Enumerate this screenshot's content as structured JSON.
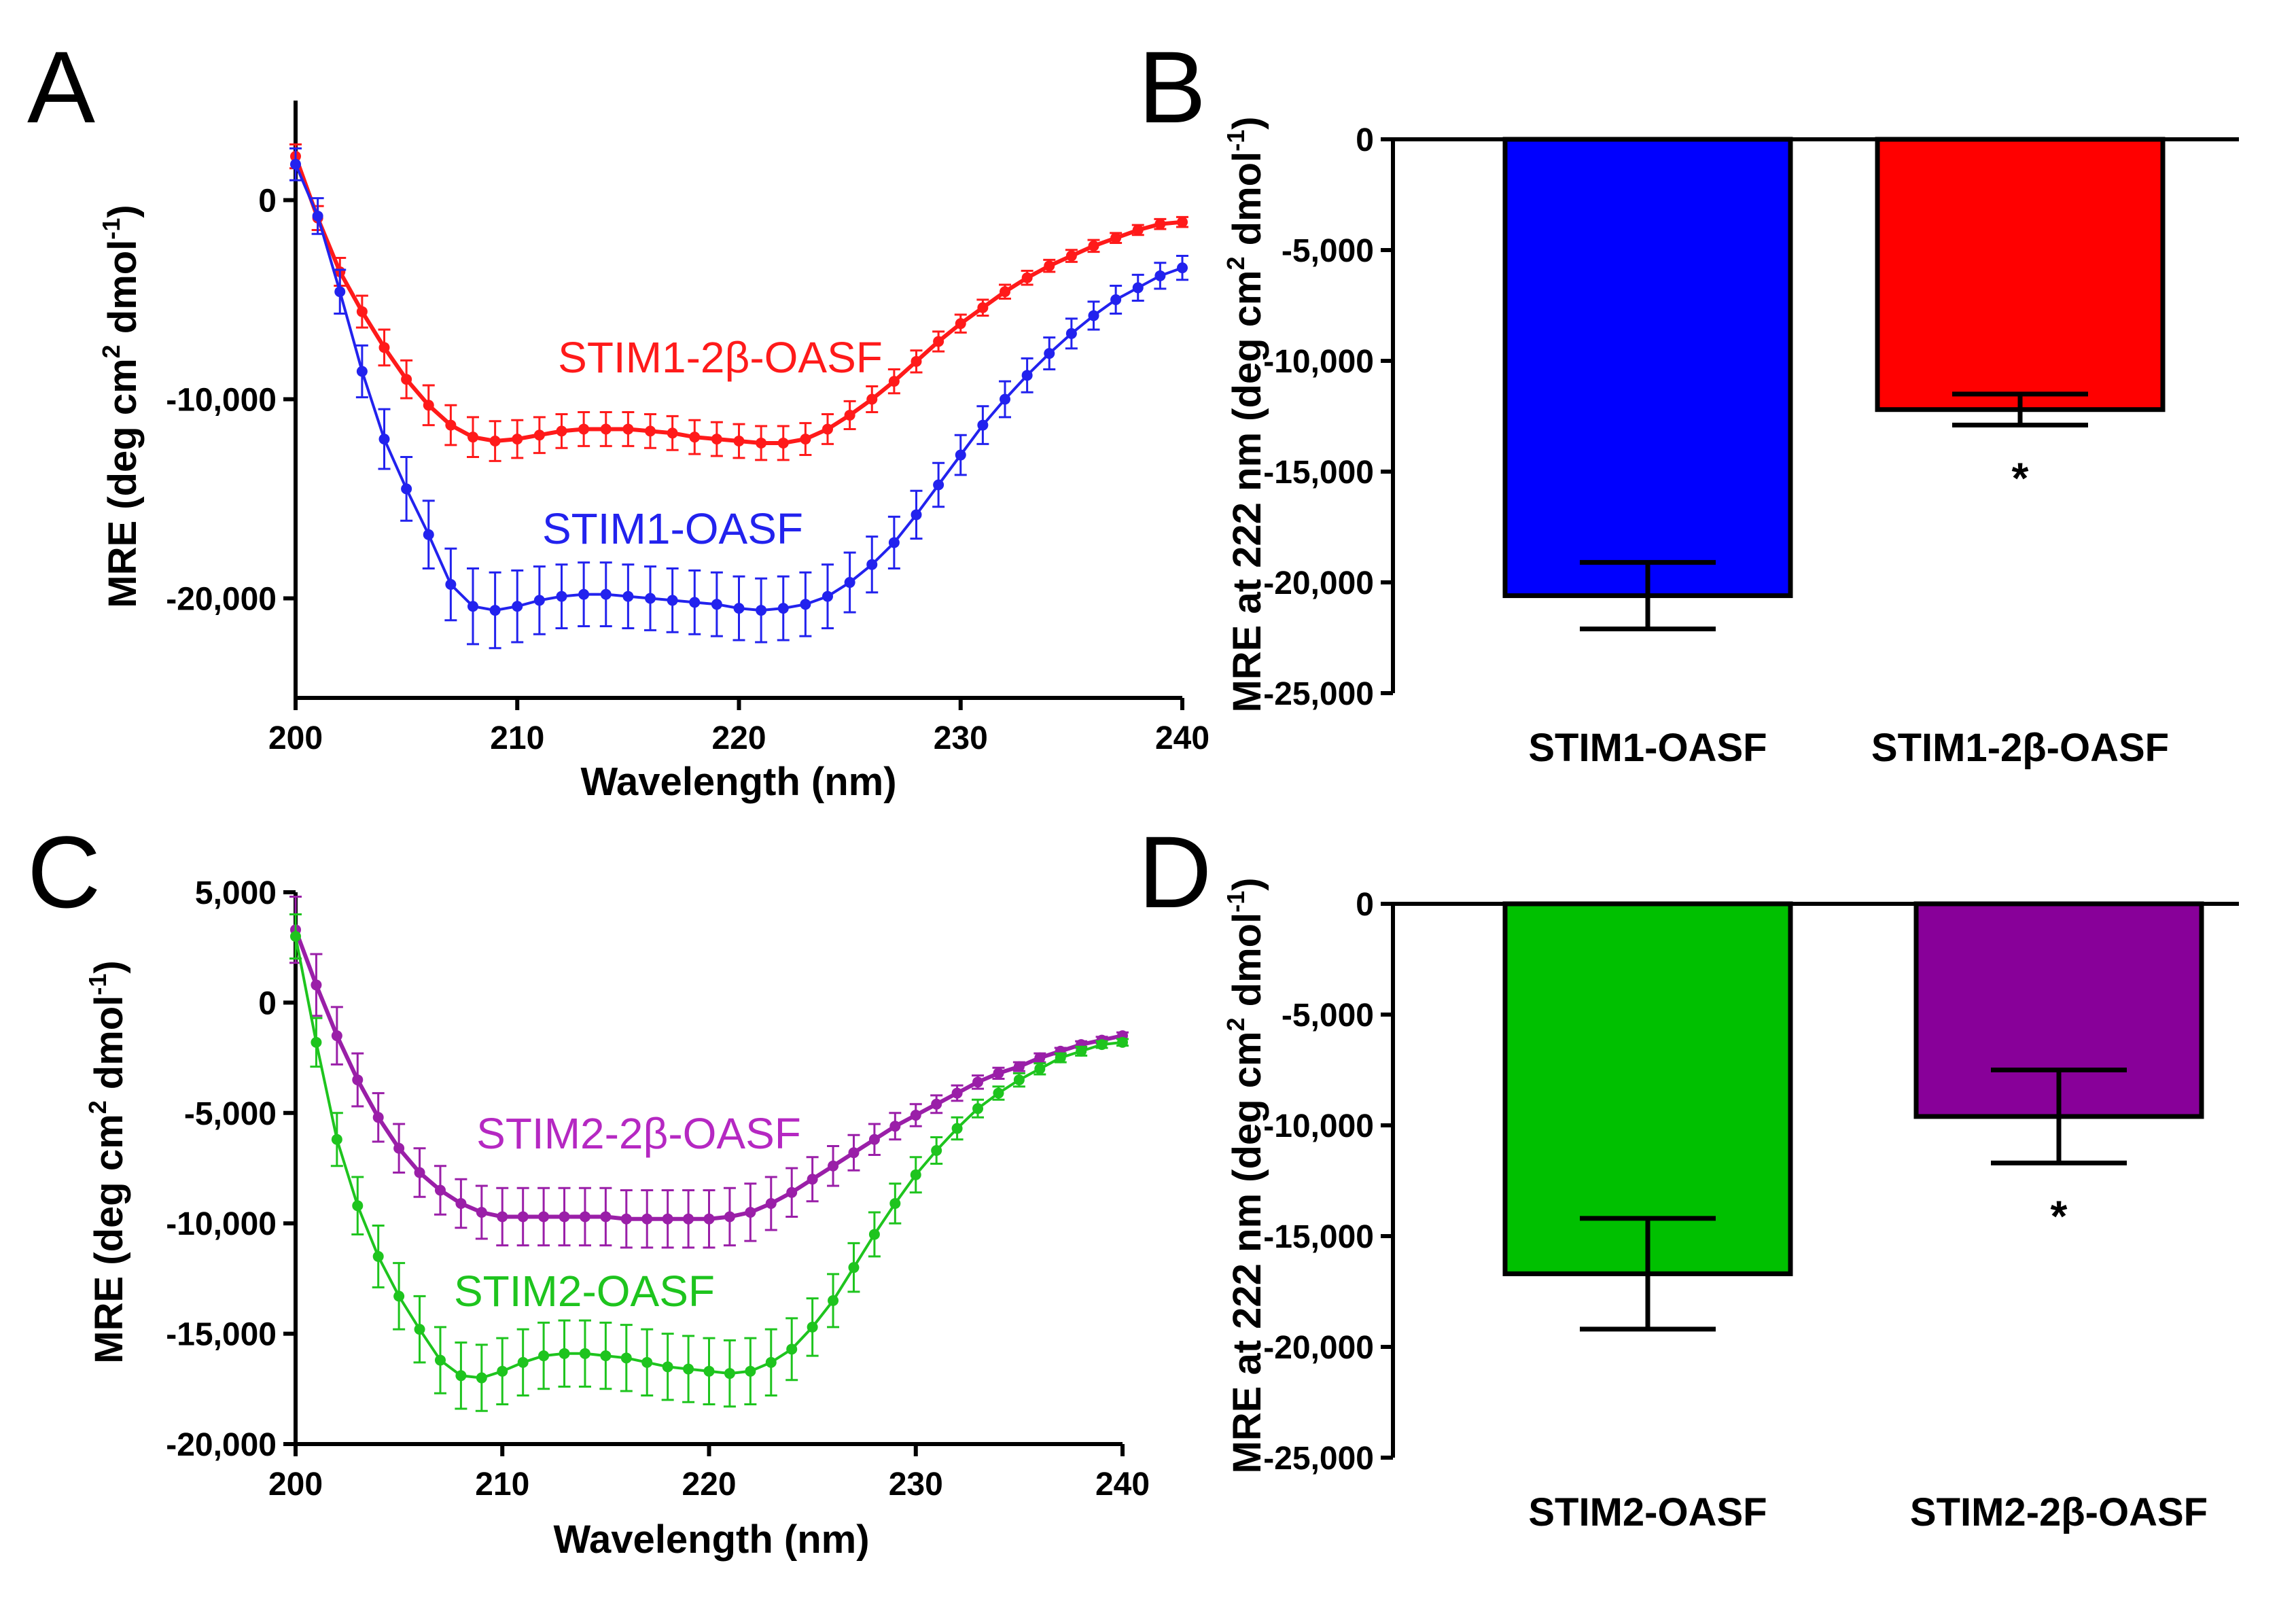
{
  "chart_data": [
    {
      "panel": "A",
      "type": "line",
      "xlabel": "Wavelength (nm)",
      "ylabel_main": "MRE (deg cm",
      "ylabel_sup1": "2",
      "ylabel_mid": " dmol",
      "ylabel_sup2": "-1",
      "ylabel_end": ")",
      "xlim": [
        200,
        240
      ],
      "ylim": [
        -25000,
        5000
      ],
      "xticks": [
        200,
        210,
        220,
        230,
        240
      ],
      "xtick_labels": [
        "200",
        "210",
        "220",
        "230",
        "240"
      ],
      "yticks": [
        0,
        -10000,
        -20000
      ],
      "ytick_labels": [
        "0",
        "-10,000",
        "-20,000"
      ],
      "series": [
        {
          "name": "STIM1-2β-OASF",
          "color": "#ff1a1a",
          "x": [
            200,
            201,
            202,
            203,
            204,
            205,
            206,
            207,
            208,
            209,
            210,
            211,
            212,
            213,
            214,
            215,
            216,
            217,
            218,
            219,
            220,
            221,
            222,
            223,
            224,
            225,
            226,
            227,
            228,
            229,
            230,
            231,
            232,
            233,
            234,
            235,
            236,
            237,
            238,
            239,
            240
          ],
          "y": [
            2200,
            -900,
            -3600,
            -5600,
            -7400,
            -9000,
            -10300,
            -11300,
            -11900,
            -12100,
            -12000,
            -11800,
            -11600,
            -11500,
            -11500,
            -11500,
            -11600,
            -11700,
            -11900,
            -12000,
            -12100,
            -12200,
            -12200,
            -12000,
            -11500,
            -10800,
            -10000,
            -9100,
            -8100,
            -7100,
            -6200,
            -5400,
            -4600,
            -3900,
            -3300,
            -2800,
            -2300,
            -1900,
            -1500,
            -1200,
            -1100
          ],
          "err": [
            600,
            600,
            700,
            800,
            900,
            950,
            1000,
            1000,
            1000,
            1000,
            950,
            900,
            850,
            850,
            850,
            850,
            850,
            850,
            850,
            850,
            850,
            850,
            850,
            800,
            750,
            700,
            650,
            600,
            550,
            500,
            450,
            400,
            350,
            350,
            300,
            300,
            300,
            250,
            250,
            250,
            250
          ]
        },
        {
          "name": "STIM1-OASF",
          "color": "#2222ee",
          "x": [
            200,
            201,
            202,
            203,
            204,
            205,
            206,
            207,
            208,
            209,
            210,
            211,
            212,
            213,
            214,
            215,
            216,
            217,
            218,
            219,
            220,
            221,
            222,
            223,
            224,
            225,
            226,
            227,
            228,
            229,
            230,
            231,
            232,
            233,
            234,
            235,
            236,
            237,
            238,
            239,
            240
          ],
          "y": [
            1800,
            -800,
            -4600,
            -8600,
            -12000,
            -14500,
            -16800,
            -19300,
            -20400,
            -20600,
            -20400,
            -20100,
            -19900,
            -19800,
            -19800,
            -19900,
            -20000,
            -20100,
            -20200,
            -20300,
            -20500,
            -20600,
            -20500,
            -20300,
            -19900,
            -19200,
            -18300,
            -17200,
            -15800,
            -14300,
            -12800,
            -11300,
            -10000,
            -8800,
            -7700,
            -6700,
            -5800,
            -5000,
            -4400,
            -3800,
            -3400
          ],
          "err": [
            800,
            900,
            1100,
            1300,
            1500,
            1600,
            1700,
            1800,
            1900,
            1900,
            1800,
            1700,
            1600,
            1600,
            1600,
            1600,
            1600,
            1600,
            1600,
            1600,
            1600,
            1600,
            1600,
            1600,
            1600,
            1500,
            1400,
            1300,
            1200,
            1100,
            1000,
            950,
            900,
            850,
            800,
            750,
            700,
            700,
            650,
            650,
            600
          ]
        }
      ]
    },
    {
      "panel": "B",
      "type": "bar",
      "ylabel_main": "MRE at 222 nm (deg cm",
      "ylabel_sup1": "2",
      "ylabel_mid": " dmol",
      "ylabel_sup2": "-1",
      "ylabel_end": ")",
      "ylim": [
        -25000,
        0
      ],
      "yticks": [
        0,
        -5000,
        -10000,
        -15000,
        -20000,
        -25000
      ],
      "ytick_labels": [
        "0",
        "-5,000",
        "-10,000",
        "-15,000",
        "-20,000",
        "-25,000"
      ],
      "categories": [
        "STIM1-OASF",
        "STIM1-2β-OASF"
      ],
      "values": [
        -20600,
        -12200
      ],
      "errors": [
        1500,
        700
      ],
      "colors": [
        "#0000ff",
        "#ff0000"
      ],
      "significance": [
        "",
        "*"
      ]
    },
    {
      "panel": "C",
      "type": "line",
      "xlabel": "Wavelength (nm)",
      "ylabel_main": "MRE (deg cm",
      "ylabel_sup1": "2",
      "ylabel_mid": " dmol",
      "ylabel_sup2": "-1",
      "ylabel_end": ")",
      "xlim": [
        200,
        240
      ],
      "ylim": [
        -20000,
        5000
      ],
      "xticks": [
        200,
        210,
        220,
        230,
        240
      ],
      "xtick_labels": [
        "200",
        "210",
        "220",
        "230",
        "240"
      ],
      "yticks": [
        5000,
        0,
        -5000,
        -10000,
        -15000,
        -20000
      ],
      "ytick_labels": [
        "5,000",
        "0",
        "-5,000",
        "-10,000",
        "-15,000",
        "-20,000"
      ],
      "series": [
        {
          "name": "STIM2-2β-OASF",
          "color": "#9a1fa8",
          "x": [
            200,
            201,
            202,
            203,
            204,
            205,
            206,
            207,
            208,
            209,
            210,
            211,
            212,
            213,
            214,
            215,
            216,
            217,
            218,
            219,
            220,
            221,
            222,
            223,
            224,
            225,
            226,
            227,
            228,
            229,
            230,
            231,
            232,
            233,
            234,
            235,
            236,
            237,
            238,
            239,
            240
          ],
          "y": [
            3300,
            800,
            -1500,
            -3500,
            -5200,
            -6600,
            -7700,
            -8500,
            -9100,
            -9500,
            -9700,
            -9700,
            -9700,
            -9700,
            -9700,
            -9700,
            -9800,
            -9800,
            -9800,
            -9800,
            -9800,
            -9700,
            -9500,
            -9100,
            -8600,
            -8000,
            -7400,
            -6800,
            -6200,
            -5600,
            -5100,
            -4600,
            -4100,
            -3600,
            -3200,
            -2900,
            -2500,
            -2200,
            -1900,
            -1700,
            -1500
          ],
          "err": [
            1500,
            1400,
            1300,
            1200,
            1100,
            1100,
            1100,
            1100,
            1100,
            1200,
            1300,
            1300,
            1300,
            1300,
            1300,
            1300,
            1300,
            1300,
            1300,
            1300,
            1300,
            1300,
            1300,
            1200,
            1100,
            1000,
            900,
            800,
            700,
            600,
            500,
            400,
            350,
            300,
            250,
            200,
            200,
            150,
            150,
            150,
            150
          ]
        },
        {
          "name": "STIM2-OASF",
          "color": "#1ec41e",
          "x": [
            200,
            201,
            202,
            203,
            204,
            205,
            206,
            207,
            208,
            209,
            210,
            211,
            212,
            213,
            214,
            215,
            216,
            217,
            218,
            219,
            220,
            221,
            222,
            223,
            224,
            225,
            226,
            227,
            228,
            229,
            230,
            231,
            232,
            233,
            234,
            235,
            236,
            237,
            238,
            239,
            240
          ],
          "y": [
            3000,
            -1800,
            -6200,
            -9200,
            -11500,
            -13300,
            -14800,
            -16200,
            -16900,
            -17000,
            -16700,
            -16300,
            -16000,
            -15900,
            -15900,
            -16000,
            -16100,
            -16300,
            -16500,
            -16600,
            -16700,
            -16800,
            -16700,
            -16300,
            -15700,
            -14700,
            -13500,
            -12000,
            -10500,
            -9100,
            -7800,
            -6700,
            -5700,
            -4800,
            -4100,
            -3500,
            -3000,
            -2500,
            -2200,
            -1900,
            -1800
          ],
          "err": [
            1000,
            1100,
            1200,
            1300,
            1400,
            1500,
            1500,
            1500,
            1500,
            1500,
            1500,
            1500,
            1500,
            1500,
            1500,
            1500,
            1500,
            1500,
            1500,
            1500,
            1500,
            1500,
            1500,
            1500,
            1400,
            1300,
            1200,
            1100,
            1000,
            900,
            800,
            600,
            500,
            400,
            300,
            300,
            250,
            200,
            200,
            150,
            150
          ]
        }
      ]
    },
    {
      "panel": "D",
      "type": "bar",
      "ylabel_main": "MRE at 222 nm (deg cm",
      "ylabel_sup1": "2",
      "ylabel_mid": " dmol",
      "ylabel_sup2": "-1",
      "ylabel_end": ")",
      "ylim": [
        -25000,
        0
      ],
      "yticks": [
        0,
        -5000,
        -10000,
        -15000,
        -20000,
        -25000
      ],
      "ytick_labels": [
        "0",
        "-5,000",
        "-10,000",
        "-15,000",
        "-20,000",
        "-25,000"
      ],
      "categories": [
        "STIM2-OASF",
        "STIM2-2β-OASF"
      ],
      "values": [
        -16700,
        -9600
      ],
      "errors": [
        2500,
        2100
      ],
      "colors": [
        "#00c000",
        "#880099"
      ],
      "significance": [
        "",
        "*"
      ]
    }
  ]
}
